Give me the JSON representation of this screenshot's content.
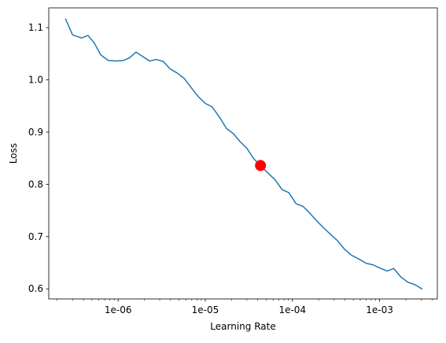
{
  "chart_data": {
    "type": "line",
    "title": "",
    "xlabel": "Learning Rate",
    "ylabel": "Loss",
    "xscale": "log",
    "xlim": [
      1.6e-07,
      0.0046
    ],
    "ylim": [
      0.5807,
      1.1377
    ],
    "grid": false,
    "x_tick_values": [
      1e-06,
      1e-05,
      0.0001,
      0.001
    ],
    "x_tick_labels": [
      "1e-06",
      "1e-05",
      "1e-04",
      "1e-03"
    ],
    "y_tick_values": [
      0.6,
      0.7,
      0.8,
      0.9,
      1.0,
      1.1
    ],
    "y_tick_labels": [
      "0.6",
      "0.7",
      "0.8",
      "0.9",
      "1.0",
      "1.1"
    ],
    "series": [
      {
        "color": "#1f77b4",
        "x": [
          2.5e-07,
          3e-07,
          3.8e-07,
          4.5e-07,
          5.3e-07,
          6.3e-07,
          7.7e-07,
          9.5e-07,
          1.15e-06,
          1.35e-06,
          1.6e-06,
          1.9e-06,
          2.3e-06,
          2.75e-06,
          3.3e-06,
          3.95e-06,
          4.75e-06,
          5.7e-06,
          6.9e-06,
          8.3e-06,
          1e-05,
          1.2e-05,
          1.45e-05,
          1.75e-05,
          2.1e-05,
          2.5e-05,
          3e-05,
          3.6e-05,
          4.3e-05,
          5.2e-05,
          6.3e-05,
          7.6e-05,
          9.1e-05,
          0.00011,
          0.000132,
          0.00016,
          0.00019,
          0.00023,
          0.000275,
          0.00033,
          0.0004,
          0.00048,
          0.00058,
          0.0007,
          0.00084,
          0.001,
          0.00122,
          0.00145,
          0.00175,
          0.0021,
          0.00255,
          0.00305
        ],
        "y": [
          1.116,
          1.086,
          1.08,
          1.085,
          1.071,
          1.048,
          1.037,
          1.036,
          1.037,
          1.042,
          1.053,
          1.045,
          1.036,
          1.039,
          1.035,
          1.021,
          1.013,
          1.003,
          0.985,
          0.968,
          0.955,
          0.948,
          0.929,
          0.907,
          0.897,
          0.882,
          0.869,
          0.849,
          0.836,
          0.822,
          0.809,
          0.79,
          0.784,
          0.763,
          0.758,
          0.744,
          0.73,
          0.716,
          0.704,
          0.692,
          0.675,
          0.664,
          0.657,
          0.649,
          0.646,
          0.64,
          0.634,
          0.639,
          0.623,
          0.613,
          0.608,
          0.6
        ]
      }
    ],
    "marker": {
      "x": 4.3e-05,
      "y": 0.836,
      "color": "#ff0000"
    }
  }
}
